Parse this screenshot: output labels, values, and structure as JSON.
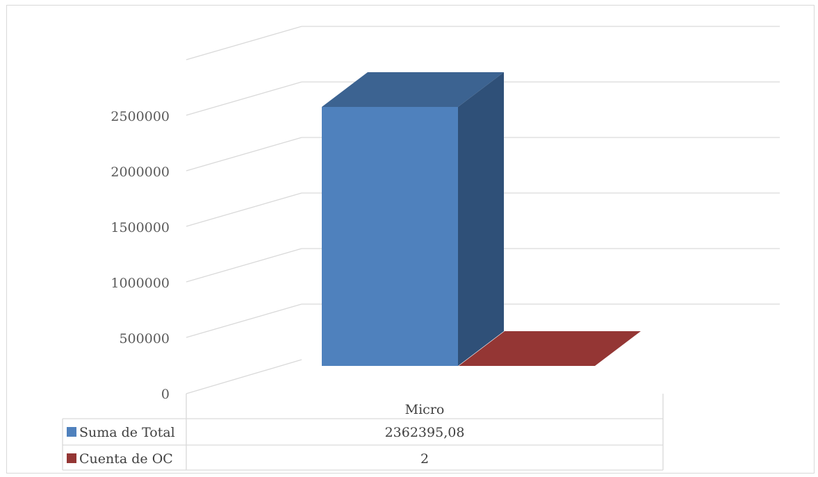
{
  "chart_data": {
    "type": "bar",
    "style": "3d-column",
    "categories": [
      "Micro"
    ],
    "series": [
      {
        "name": "Suma de Total",
        "values": [
          2362395.08
        ],
        "display": "2362395,08",
        "color": "#4f81bd",
        "side_color": "#2f5078",
        "top_color": "#3c6391"
      },
      {
        "name": "Cuenta de OC",
        "values": [
          2
        ],
        "display": "2",
        "color": "#943634",
        "side_color": "#6e2725",
        "top_color": "#943634"
      }
    ],
    "y_ticks": [
      "0",
      "500000",
      "1000000",
      "1500000",
      "2000000",
      "2500000"
    ],
    "ylim": [
      0,
      3000000
    ],
    "grid": true,
    "legend": "data-table"
  }
}
